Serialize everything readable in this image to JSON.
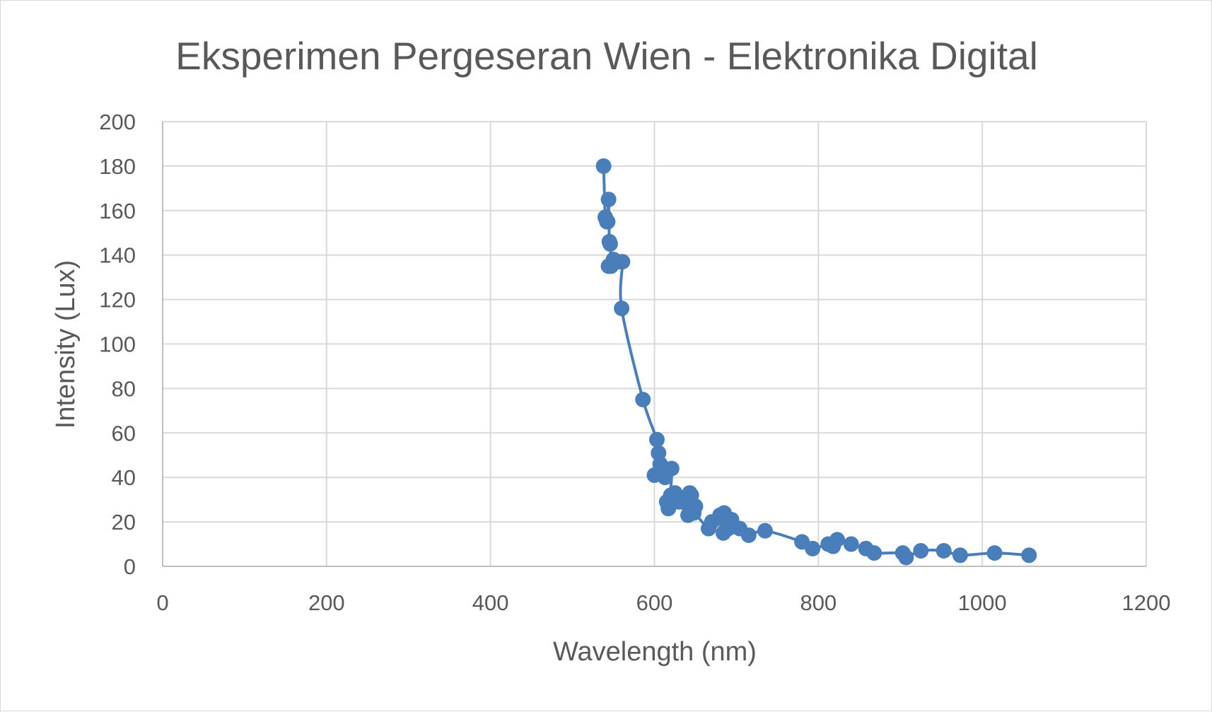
{
  "chart_data": {
    "type": "scatter",
    "title": "Eksperimen Pergeseran Wien  - Elektronika Digital",
    "xlabel": "Wavelength (nm)",
    "ylabel": "Intensity (Lux)",
    "xlim": [
      0,
      1200
    ],
    "ylim": [
      0,
      200
    ],
    "x_ticks": [
      0,
      200,
      400,
      600,
      800,
      1000,
      1200
    ],
    "y_ticks": [
      0,
      20,
      40,
      60,
      80,
      100,
      120,
      140,
      160,
      180,
      200
    ],
    "grid": true,
    "legend": "none",
    "smooth_line": true,
    "color": "#4a7ebb",
    "series": [
      {
        "x": [
          538,
          540,
          542,
          543,
          544,
          545,
          546,
          547,
          544,
          550,
          556,
          561,
          560,
          586,
          603,
          605,
          600,
          607,
          613,
          610,
          621,
          617,
          615,
          620,
          625,
          630,
          643,
          641,
          645,
          650,
          648,
          640,
          666,
          670,
          680,
          685,
          684,
          688,
          694,
          690,
          704,
          715,
          735,
          780,
          793,
          812,
          818,
          823,
          840,
          858,
          868,
          903,
          907,
          925,
          953,
          973,
          1015,
          1057
        ],
        "y": [
          180,
          157,
          155,
          155,
          165,
          146,
          145,
          135,
          135,
          138,
          137,
          137,
          116,
          75,
          57,
          51,
          41,
          46,
          40,
          43,
          44,
          26,
          29,
          32,
          33,
          29,
          33,
          23,
          32,
          27,
          24,
          28,
          17,
          20,
          23,
          24,
          15,
          18,
          21,
          17,
          17,
          14,
          16,
          11,
          8,
          10,
          9,
          12,
          10,
          8,
          6,
          6,
          4,
          7,
          7,
          5,
          6,
          5
        ]
      }
    ]
  }
}
